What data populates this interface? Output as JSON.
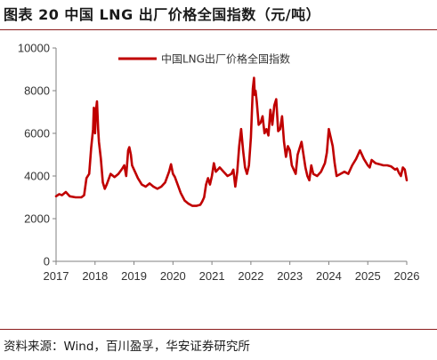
{
  "title": "图表 20 中国 LNG 出厂价格全国指数（元/吨）",
  "source": "资料来源：Wind，百川盈孚，华安证券研究所",
  "colors": {
    "series": "#c00000",
    "rule": "#8c1d1d",
    "axis": "#808080"
  },
  "chart_data": {
    "type": "line",
    "title": "",
    "xlabel": "",
    "ylabel": "",
    "xlim": [
      2017.0,
      2026.0
    ],
    "ylim": [
      0,
      10000
    ],
    "yticks": [
      "0",
      "2000",
      "4000",
      "6000",
      "8000",
      "10000"
    ],
    "xticks": [
      "2017",
      "2018",
      "2019",
      "2020",
      "2021",
      "2022",
      "2023",
      "2024",
      "2025",
      "2026"
    ],
    "grid": false,
    "legend": "top-left",
    "series": [
      {
        "name": "中国LNG出厂价格全国指数",
        "x": [
          2017.0,
          2017.08,
          2017.15,
          2017.25,
          2017.35,
          2017.5,
          2017.65,
          2017.72,
          2017.78,
          2017.85,
          2017.9,
          2017.95,
          2017.97,
          2018.0,
          2018.02,
          2018.05,
          2018.08,
          2018.1,
          2018.15,
          2018.2,
          2018.25,
          2018.3,
          2018.4,
          2018.5,
          2018.6,
          2018.7,
          2018.75,
          2018.8,
          2018.85,
          2018.88,
          2018.92,
          2018.95,
          2019.0,
          2019.05,
          2019.1,
          2019.2,
          2019.3,
          2019.4,
          2019.5,
          2019.6,
          2019.7,
          2019.8,
          2019.9,
          2019.95,
          2020.0,
          2020.05,
          2020.1,
          2020.2,
          2020.3,
          2020.4,
          2020.5,
          2020.6,
          2020.7,
          2020.75,
          2020.8,
          2020.85,
          2020.9,
          2020.95,
          2021.0,
          2021.05,
          2021.1,
          2021.2,
          2021.3,
          2021.4,
          2021.5,
          2021.55,
          2021.6,
          2021.65,
          2021.7,
          2021.75,
          2021.8,
          2021.85,
          2021.9,
          2021.95,
          2022.0,
          2022.05,
          2022.08,
          2022.1,
          2022.12,
          2022.15,
          2022.2,
          2022.25,
          2022.3,
          2022.35,
          2022.4,
          2022.45,
          2022.5,
          2022.55,
          2022.6,
          2022.65,
          2022.7,
          2022.75,
          2022.8,
          2022.85,
          2022.9,
          2022.95,
          2023.0,
          2023.05,
          2023.1,
          2023.15,
          2023.2,
          2023.3,
          2023.4,
          2023.45,
          2023.5,
          2023.55,
          2023.6,
          2023.7,
          2023.8,
          2023.9,
          2023.95,
          2024.0,
          2024.05,
          2024.1,
          2024.15,
          2024.2,
          2024.3,
          2024.4,
          2024.5,
          2024.6,
          2024.7,
          2024.75,
          2024.8,
          2024.9,
          2025.0,
          2025.05,
          2025.1,
          2025.2,
          2025.3,
          2025.4,
          2025.5,
          2025.6,
          2025.7,
          2025.75,
          2025.8,
          2025.85,
          2025.9,
          2025.95,
          2026.0
        ],
        "values": [
          3050,
          3150,
          3100,
          3250,
          3050,
          3000,
          3000,
          3100,
          3900,
          4100,
          5300,
          6200,
          7200,
          6000,
          7000,
          7500,
          6200,
          5600,
          4800,
          3700,
          3400,
          3600,
          4100,
          3950,
          4100,
          4350,
          4500,
          4000,
          5200,
          5350,
          5000,
          4500,
          4300,
          4100,
          3900,
          3600,
          3500,
          3650,
          3500,
          3400,
          3500,
          3700,
          4200,
          4550,
          4100,
          3950,
          3700,
          3200,
          2850,
          2700,
          2600,
          2600,
          2650,
          2800,
          3000,
          3600,
          3900,
          3600,
          4000,
          4600,
          4200,
          4400,
          4200,
          4000,
          4100,
          4300,
          3500,
          4200,
          5400,
          6200,
          5200,
          4400,
          4100,
          4500,
          5800,
          8100,
          8600,
          7800,
          8000,
          7500,
          6400,
          6500,
          6800,
          6000,
          6200,
          5900,
          7100,
          6400,
          7300,
          7600,
          6100,
          6200,
          6800,
          5600,
          4900,
          5400,
          5200,
          4500,
          4300,
          4100,
          5000,
          5600,
          4400,
          4000,
          3800,
          4500,
          4100,
          4000,
          4200,
          4600,
          5100,
          6200,
          5800,
          5400,
          4600,
          4000,
          4100,
          4200,
          4100,
          4500,
          4800,
          5000,
          5200,
          4800,
          4500,
          4400,
          4750,
          4600,
          4550,
          4500,
          4500,
          4450,
          4300,
          4350,
          4150,
          4000,
          4400,
          4300,
          3800
        ]
      }
    ]
  }
}
